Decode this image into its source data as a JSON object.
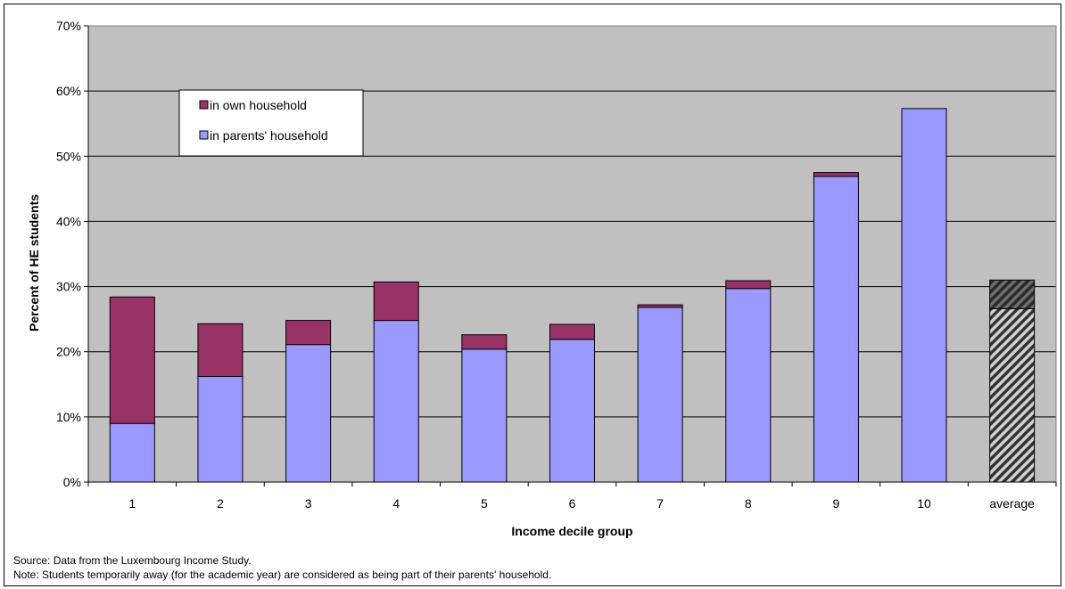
{
  "chart_data": {
    "type": "bar",
    "stacked": true,
    "categories": [
      "1",
      "2",
      "3",
      "4",
      "5",
      "6",
      "7",
      "8",
      "9",
      "10",
      "average"
    ],
    "series": [
      {
        "name": "in parents' household",
        "values": [
          9.0,
          16.2,
          21.1,
          24.8,
          20.4,
          21.9,
          26.8,
          29.7,
          46.9,
          57.3,
          26.6
        ]
      },
      {
        "name": "in own household",
        "values": [
          19.4,
          8.1,
          3.7,
          5.9,
          2.2,
          2.3,
          0.4,
          1.2,
          0.6,
          0.0,
          4.4
        ]
      }
    ],
    "title": "",
    "xlabel": "Income decile group",
    "ylabel": "Percent of HE students",
    "ylim": [
      0,
      70
    ],
    "yticks": [
      0,
      10,
      20,
      30,
      40,
      50,
      60,
      70
    ],
    "ytick_labels": [
      "0%",
      "10%",
      "20%",
      "30%",
      "40%",
      "50%",
      "60%",
      "70%"
    ],
    "grid": true,
    "legend_position": "top-left",
    "colors": {
      "in_own_household": "#993366",
      "in_parents_household": "#9999ff",
      "plot_background": "#c0c0c0",
      "average_own": "#4a4a4a",
      "average_parents": "#d0d0d0"
    }
  },
  "legend": {
    "items": [
      {
        "label": "in own household",
        "color": "#993366"
      },
      {
        "label": "in parents' household",
        "color": "#9999ff"
      }
    ]
  },
  "notes": {
    "source": "Source: Data from the Luxembourg Income Study.",
    "note": "Note: Students temporarily away (for the academic year) are considered as being part of their parents' household."
  }
}
